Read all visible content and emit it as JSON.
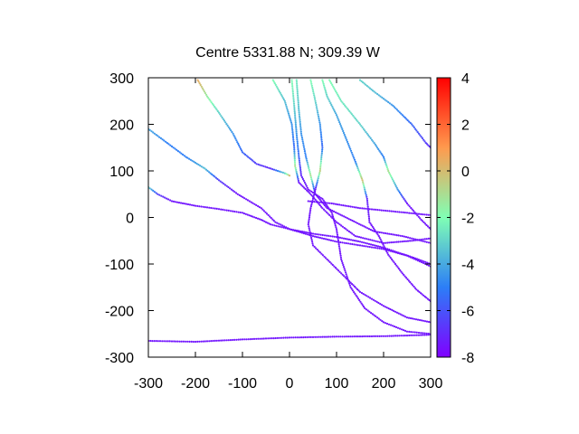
{
  "chart_data": {
    "type": "scatter",
    "title": "Centre 5331.88 N; 309.39  W",
    "xlabel": "",
    "ylabel": "",
    "xlim": [
      -300,
      300
    ],
    "ylim": [
      -300,
      300
    ],
    "xticks": [
      "-300",
      "-200",
      "-100",
      "0",
      "100",
      "200",
      "300"
    ],
    "yticks": [
      "300",
      "200",
      "100",
      "0",
      "-100",
      "-200",
      "-300"
    ],
    "colorbar": {
      "range": [
        -8,
        4
      ],
      "ticks": [
        "4",
        "2",
        "0",
        "-2",
        "-4",
        "-6",
        "-8"
      ],
      "palette": "rainbow"
    },
    "tracks": [
      {
        "points": [
          [
            -300,
            -265
          ],
          [
            -200,
            -267
          ],
          [
            -100,
            -262
          ],
          [
            0,
            -258
          ],
          [
            100,
            -256
          ],
          [
            200,
            -255
          ],
          [
            300,
            -252
          ]
        ],
        "values": [
          -7.5,
          -7.5,
          -7.5,
          -7.5,
          -7.5,
          -7.5,
          -7.5
        ]
      },
      {
        "points": [
          [
            -300,
            65
          ],
          [
            -280,
            50
          ],
          [
            -250,
            35
          ],
          [
            -200,
            25
          ],
          [
            -150,
            18
          ],
          [
            -100,
            10
          ],
          [
            -60,
            -5
          ],
          [
            -40,
            -15
          ],
          [
            0,
            -25
          ],
          [
            50,
            -35
          ],
          [
            100,
            -42
          ],
          [
            150,
            -52
          ],
          [
            200,
            -65
          ],
          [
            260,
            -85
          ],
          [
            300,
            -100
          ]
        ],
        "values": [
          -3,
          -6.5,
          -7.5,
          -7.5,
          -7.5,
          -7.5,
          -7.5,
          -7.5,
          -7.5,
          -7.5,
          -7.5,
          -7.5,
          -7.5,
          -7.5,
          -7.5
        ]
      },
      {
        "points": [
          [
            -300,
            190
          ],
          [
            -260,
            160
          ],
          [
            -220,
            130
          ],
          [
            -180,
            105
          ],
          [
            -150,
            80
          ],
          [
            -110,
            50
          ],
          [
            -60,
            20
          ],
          [
            -30,
            -10
          ],
          [
            0,
            -25
          ],
          [
            50,
            -40
          ],
          [
            100,
            -52
          ],
          [
            150,
            -60
          ],
          [
            200,
            -68
          ],
          [
            250,
            -82
          ],
          [
            300,
            -105
          ]
        ],
        "values": [
          -4,
          -5,
          -5,
          -3.5,
          -6.5,
          -7.5,
          -7.5,
          -7.5,
          -7.5,
          -7.5,
          -7.5,
          -7.5,
          -7.5,
          -7.5,
          -7.5
        ]
      },
      {
        "points": [
          [
            -195,
            295
          ],
          [
            -175,
            260
          ],
          [
            -150,
            225
          ],
          [
            -120,
            180
          ],
          [
            -100,
            140
          ],
          [
            -70,
            115
          ],
          [
            -40,
            105
          ],
          [
            -10,
            95
          ],
          [
            0,
            90
          ]
        ],
        "values": [
          0.5,
          -1.5,
          -3,
          -4.5,
          -5.5,
          -6.5,
          -7,
          -3,
          0
        ]
      },
      {
        "points": [
          [
            -35,
            295
          ],
          [
            -10,
            250
          ],
          [
            5,
            200
          ],
          [
            10,
            150
          ],
          [
            12,
            110
          ],
          [
            20,
            75
          ],
          [
            45,
            50
          ],
          [
            70,
            20
          ],
          [
            100,
            -10
          ],
          [
            140,
            -40
          ],
          [
            200,
            -55
          ],
          [
            260,
            -50
          ],
          [
            300,
            -45
          ]
        ],
        "values": [
          -2,
          -3.5,
          -4.5,
          -5.5,
          -1,
          -7.5,
          -7.5,
          -7.5,
          -7.5,
          -7.5,
          -7.5,
          -7.5,
          -7.5
        ]
      },
      {
        "points": [
          [
            5,
            295
          ],
          [
            10,
            240
          ],
          [
            15,
            180
          ],
          [
            20,
            130
          ],
          [
            25,
            90
          ],
          [
            40,
            60
          ],
          [
            70,
            40
          ],
          [
            90,
            10
          ],
          [
            100,
            -25
          ],
          [
            110,
            -90
          ],
          [
            130,
            -150
          ],
          [
            160,
            -195
          ],
          [
            200,
            -225
          ],
          [
            250,
            -245
          ],
          [
            300,
            -250
          ]
        ],
        "values": [
          -2,
          -3,
          -4.5,
          -5.5,
          -7,
          -7.5,
          -7.5,
          -7.5,
          -7.5,
          -7.5,
          -7.5,
          -7.5,
          -7.5,
          -7.5,
          -7.5
        ]
      },
      {
        "points": [
          [
            15,
            295
          ],
          [
            20,
            230
          ],
          [
            25,
            180
          ],
          [
            35,
            130
          ],
          [
            45,
            90
          ],
          [
            55,
            50
          ],
          [
            80,
            20
          ],
          [
            130,
            -5
          ],
          [
            180,
            -30
          ],
          [
            240,
            -40
          ],
          [
            300,
            -55
          ]
        ],
        "values": [
          -2.5,
          -3.5,
          -4.5,
          -5,
          -1,
          -7.5,
          -7.5,
          -7.5,
          -7.5,
          -7.5,
          -7.5
        ]
      },
      {
        "points": [
          [
            45,
            295
          ],
          [
            55,
            250
          ],
          [
            65,
            200
          ],
          [
            70,
            150
          ],
          [
            65,
            100
          ],
          [
            55,
            60
          ],
          [
            45,
            20
          ],
          [
            40,
            -15
          ],
          [
            50,
            -60
          ],
          [
            80,
            -90
          ],
          [
            110,
            -120
          ],
          [
            150,
            -160
          ],
          [
            200,
            -190
          ],
          [
            250,
            -215
          ],
          [
            300,
            -225
          ]
        ],
        "values": [
          -2,
          -3,
          -4.5,
          -5.5,
          -0.5,
          -7.5,
          -7.5,
          -7.5,
          -7.5,
          -7.5,
          -7.5,
          -7.5,
          -7.5,
          -7.5,
          -7.5
        ]
      },
      {
        "points": [
          [
            70,
            295
          ],
          [
            80,
            260
          ],
          [
            100,
            220
          ],
          [
            120,
            170
          ],
          [
            140,
            120
          ],
          [
            155,
            80
          ],
          [
            165,
            40
          ],
          [
            170,
            -10
          ],
          [
            190,
            -40
          ],
          [
            210,
            -80
          ],
          [
            240,
            -120
          ],
          [
            270,
            -155
          ],
          [
            300,
            -180
          ]
        ],
        "values": [
          -2,
          -3,
          -4,
          -4.5,
          -5,
          0,
          -7,
          -7.5,
          -7.5,
          -7.5,
          -7.5,
          -7.5,
          -7.5
        ]
      },
      {
        "points": [
          [
            85,
            295
          ],
          [
            110,
            250
          ],
          [
            150,
            200
          ],
          [
            180,
            160
          ],
          [
            200,
            130
          ],
          [
            210,
            100
          ],
          [
            230,
            60
          ],
          [
            250,
            30
          ],
          [
            280,
            -5
          ],
          [
            300,
            -25
          ]
        ],
        "values": [
          -2,
          -2.5,
          -3,
          -4,
          -5,
          -1,
          -4.5,
          -7.5,
          -7.5,
          -7.5
        ]
      },
      {
        "points": [
          [
            150,
            295
          ],
          [
            180,
            270
          ],
          [
            220,
            240
          ],
          [
            260,
            200
          ],
          [
            290,
            160
          ],
          [
            300,
            150
          ]
        ],
        "values": [
          -3,
          -3.5,
          -4.5,
          -5.5,
          -6.5,
          -7
        ]
      },
      {
        "points": [
          [
            40,
            35
          ],
          [
            90,
            30
          ],
          [
            150,
            20
          ],
          [
            200,
            15
          ],
          [
            250,
            10
          ],
          [
            300,
            5
          ]
        ],
        "values": [
          -7.5,
          -7.5,
          -7.5,
          -7.5,
          -7.5,
          -7.5
        ]
      }
    ]
  }
}
